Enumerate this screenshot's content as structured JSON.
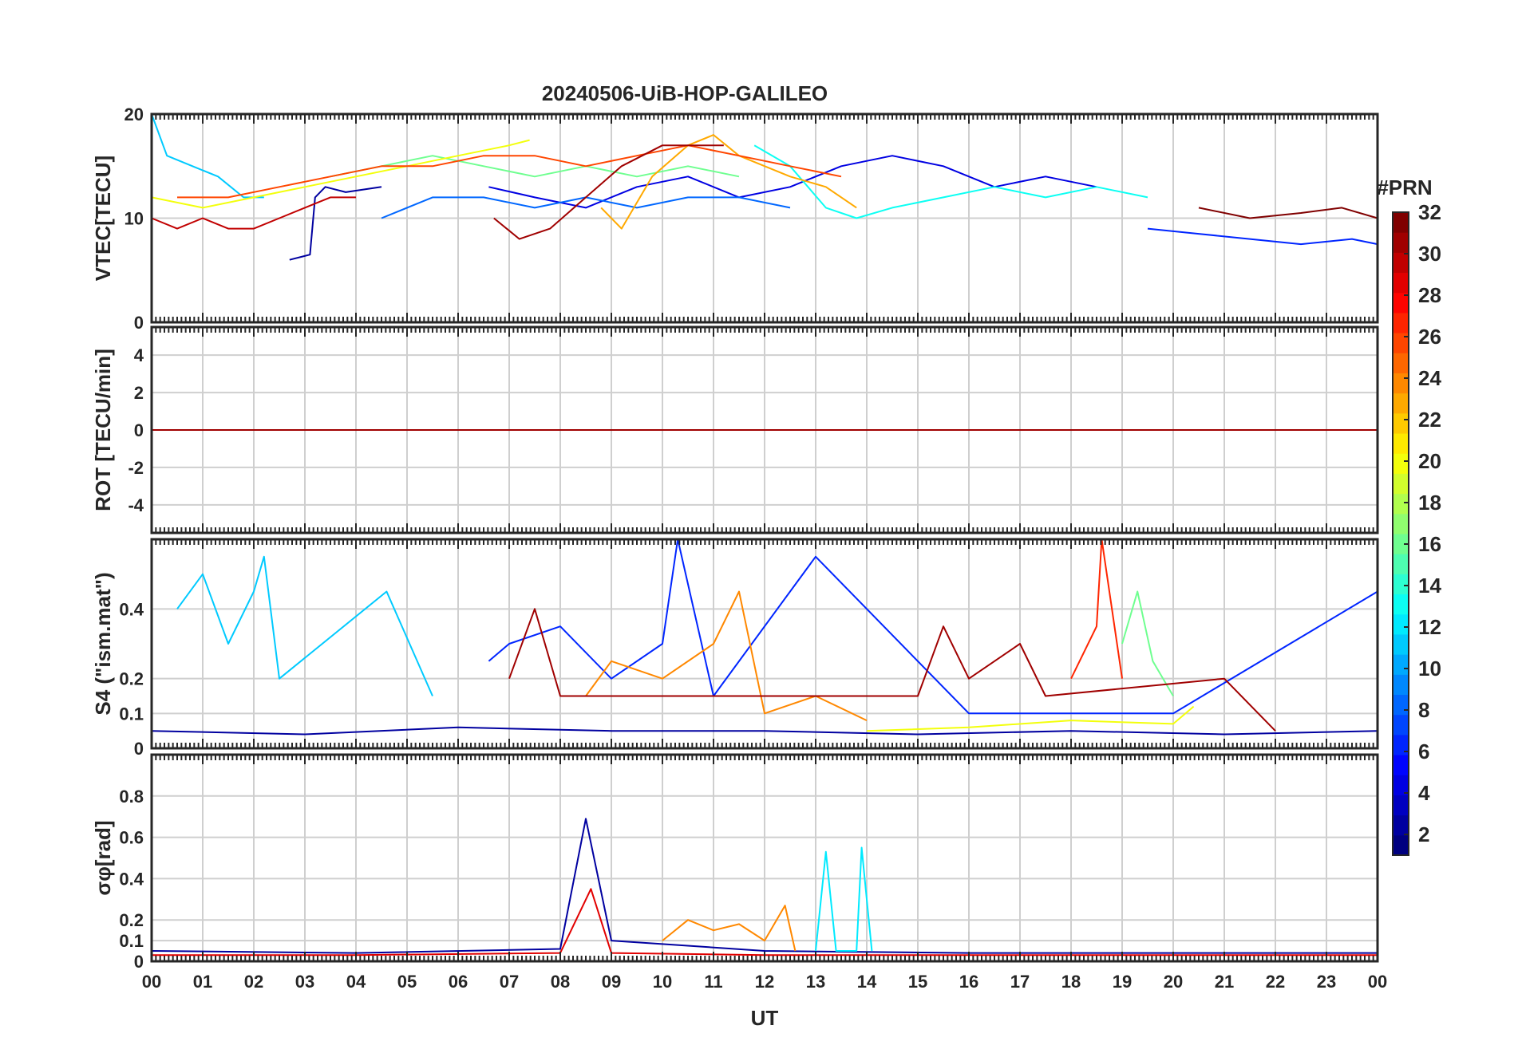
{
  "chart_data": {
    "type": "line",
    "title": "20240506-UiB-HOP-GALILEO",
    "xlabel": "UT",
    "x_ticks": [
      "00",
      "01",
      "02",
      "03",
      "04",
      "05",
      "06",
      "07",
      "08",
      "09",
      "10",
      "11",
      "12",
      "13",
      "14",
      "15",
      "16",
      "17",
      "18",
      "19",
      "20",
      "21",
      "22",
      "23",
      "00"
    ],
    "xlim_hours": [
      0,
      24
    ],
    "panels": [
      {
        "id": "vtec",
        "ylabel": "VTEC[TECU]",
        "ylim": [
          0,
          20
        ],
        "yticks": [
          0,
          10,
          20
        ],
        "grid": true,
        "series": [
          {
            "prn": 2,
            "x": [
              2.7,
              3.1,
              3.2,
              3.4,
              3.8,
              4.5
            ],
            "y": [
              6,
              6.5,
              12,
              13,
              12.5,
              13
            ]
          },
          {
            "prn": 4,
            "x": [
              6.6,
              7.5,
              8.5,
              9.5,
              10.5,
              11.5,
              12.5,
              13.5,
              14.5,
              15.5,
              16.5,
              17.5,
              18.5
            ],
            "y": [
              13,
              12,
              11,
              13,
              14,
              12,
              13,
              15,
              16,
              15,
              13,
              14,
              13
            ]
          },
          {
            "prn": 6,
            "x": [
              19.5,
              20.5,
              21.5,
              22.5,
              23.5,
              24
            ],
            "y": [
              9,
              8.5,
              8,
              7.5,
              8,
              7.5
            ]
          },
          {
            "prn": 8,
            "x": [
              4.5,
              5.5,
              6.5,
              7.5,
              8.5,
              9.5,
              10.5,
              11.5,
              12.5
            ],
            "y": [
              10,
              12,
              12,
              11,
              12,
              11,
              12,
              12,
              11
            ]
          },
          {
            "prn": 11,
            "x": [
              0,
              0.3,
              0.8,
              1.3,
              1.8,
              2.2
            ],
            "y": [
              20,
              16,
              15,
              14,
              12,
              12
            ]
          },
          {
            "prn": 13,
            "x": [
              11.8,
              12.5,
              13.2,
              13.8,
              14.5,
              15.5,
              16.5,
              17.5,
              18.5,
              19.5
            ],
            "y": [
              17,
              15,
              11,
              10,
              11,
              12,
              13,
              12,
              13,
              12
            ]
          },
          {
            "prn": 16,
            "x": [
              3.5,
              4.5,
              5.5,
              6.5,
              7.5,
              8.5,
              9.5,
              10.5,
              11.5
            ],
            "y": [
              14,
              15,
              16,
              15,
              14,
              15,
              14,
              15,
              14
            ]
          },
          {
            "prn": 20,
            "x": [
              0,
              1,
              2,
              3,
              4,
              5,
              6,
              7,
              7.4
            ],
            "y": [
              12,
              11,
              12,
              13,
              14,
              15,
              16,
              17,
              17.5
            ]
          },
          {
            "prn": 23,
            "x": [
              8.8,
              9.2,
              9.8,
              10.5,
              11,
              11.5,
              12.5,
              13.2,
              13.8
            ],
            "y": [
              11,
              9,
              14,
              17,
              18,
              16,
              14,
              13,
              11
            ]
          },
          {
            "prn": 26,
            "x": [
              0.5,
              1.5,
              2.5,
              3.5,
              4.5,
              5.5,
              6.5,
              7.5,
              8.5,
              9.5,
              10.5,
              11.5,
              12.5,
              13.5
            ],
            "y": [
              12,
              12,
              13,
              14,
              15,
              15,
              16,
              16,
              15,
              16,
              17,
              16,
              15,
              14
            ]
          },
          {
            "prn": 30,
            "x": [
              0,
              0.5,
              1,
              1.5,
              2,
              2.5,
              3,
              3.5,
              4
            ],
            "y": [
              10,
              9,
              10,
              9,
              9,
              10,
              11,
              12,
              12
            ]
          },
          {
            "prn": 31,
            "x": [
              6.7,
              7.2,
              7.8,
              8.5,
              9.2,
              10,
              10.8,
              11.2
            ],
            "y": [
              10,
              8,
              9,
              12,
              15,
              17,
              17,
              17
            ]
          },
          {
            "prn": 32,
            "x": [
              20.5,
              21.5,
              22.5,
              23.3,
              24
            ],
            "y": [
              11,
              10,
              10.5,
              11,
              10
            ]
          }
        ]
      },
      {
        "id": "rot",
        "ylabel": "ROT [TECU/min]",
        "ylim": [
          -5.5,
          5.5
        ],
        "yticks": [
          -4,
          -2,
          0,
          2,
          4
        ],
        "grid": true,
        "series": [
          {
            "prn": 4,
            "x": [
              0,
              3,
              6,
              9,
              12,
              15,
              18,
              21,
              24
            ],
            "y": [
              0,
              0,
              0,
              0,
              0,
              0,
              0,
              0,
              0
            ]
          },
          {
            "prn": 11,
            "x": [
              0,
              2,
              4,
              6,
              8,
              10,
              12,
              14,
              16,
              18,
              20,
              22,
              24
            ],
            "y": [
              0,
              0,
              0,
              0,
              0,
              0,
              0,
              0,
              0,
              0,
              0,
              0,
              0
            ]
          },
          {
            "prn": 24,
            "x": [
              0,
              4,
              8,
              12,
              16,
              20,
              24
            ],
            "y": [
              0,
              0,
              0,
              0,
              0,
              0,
              0
            ]
          },
          {
            "prn": 31,
            "x": [
              0,
              4,
              8,
              12,
              16,
              20,
              24
            ],
            "y": [
              0,
              0,
              0,
              0,
              0,
              0,
              0
            ]
          }
        ]
      },
      {
        "id": "s4",
        "ylabel": "S4 (\"ism.mat\")",
        "ylim": [
          0,
          0.6
        ],
        "yticks": [
          0,
          0.1,
          0.2,
          0.4
        ],
        "grid": true,
        "series": [
          {
            "prn": 2,
            "x": [
              0,
              3,
              6,
              9,
              12,
              15,
              18,
              21,
              24
            ],
            "y": [
              0.05,
              0.04,
              0.06,
              0.05,
              0.05,
              0.04,
              0.05,
              0.04,
              0.05
            ]
          },
          {
            "prn": 6,
            "x": [
              6.6,
              7,
              8,
              9,
              10,
              10.3,
              11,
              13,
              16,
              20,
              24
            ],
            "y": [
              0.25,
              0.3,
              0.35,
              0.2,
              0.3,
              0.6,
              0.15,
              0.55,
              0.1,
              0.1,
              0.45
            ]
          },
          {
            "prn": 11,
            "x": [
              0.5,
              1,
              1.5,
              2,
              2.2,
              2.5,
              4.6,
              5.5
            ],
            "y": [
              0.4,
              0.5,
              0.3,
              0.45,
              0.55,
              0.2,
              0.45,
              0.15
            ]
          },
          {
            "prn": 16,
            "x": [
              19,
              19.3,
              19.6,
              20
            ],
            "y": [
              0.3,
              0.45,
              0.25,
              0.15
            ]
          },
          {
            "prn": 20,
            "x": [
              14,
              16,
              18,
              20,
              20.4
            ],
            "y": [
              0.05,
              0.06,
              0.08,
              0.07,
              0.12
            ]
          },
          {
            "prn": 24,
            "x": [
              8.5,
              9,
              10,
              11,
              11.5,
              12,
              13,
              14
            ],
            "y": [
              0.15,
              0.25,
              0.2,
              0.3,
              0.45,
              0.1,
              0.15,
              0.08
            ]
          },
          {
            "prn": 27,
            "x": [
              18,
              18.5,
              18.6,
              19
            ],
            "y": [
              0.2,
              0.35,
              0.6,
              0.2
            ]
          },
          {
            "prn": 31,
            "x": [
              7,
              7.5,
              8,
              15,
              15.5,
              16,
              17,
              17.5,
              21,
              22
            ],
            "y": [
              0.2,
              0.4,
              0.15,
              0.15,
              0.35,
              0.2,
              0.3,
              0.15,
              0.2,
              0.05
            ]
          }
        ]
      },
      {
        "id": "sigma_phi",
        "ylabel": "σφ[rad]",
        "ylim": [
          0,
          1
        ],
        "yticks": [
          0,
          0.1,
          0.2,
          0.4,
          0.6,
          0.8
        ],
        "grid": true,
        "series": [
          {
            "prn": 2,
            "x": [
              0,
              4,
              8,
              8.5,
              9,
              12,
              16,
              20,
              24
            ],
            "y": [
              0.05,
              0.04,
              0.06,
              0.69,
              0.1,
              0.05,
              0.04,
              0.04,
              0.04
            ]
          },
          {
            "prn": 12,
            "x": [
              13,
              13.2,
              13.4,
              13.8,
              13.9,
              14.1
            ],
            "y": [
              0.05,
              0.53,
              0.05,
              0.05,
              0.55,
              0.05
            ]
          },
          {
            "prn": 24,
            "x": [
              10,
              10.5,
              11,
              11.5,
              12,
              12.4,
              12.6
            ],
            "y": [
              0.1,
              0.2,
              0.15,
              0.18,
              0.1,
              0.27,
              0.05
            ]
          },
          {
            "prn": 29,
            "x": [
              0,
              4,
              8,
              8.6,
              9,
              12,
              16,
              20,
              24
            ],
            "y": [
              0.03,
              0.03,
              0.04,
              0.35,
              0.04,
              0.03,
              0.03,
              0.03,
              0.03
            ]
          }
        ]
      }
    ],
    "colorbar": {
      "label": "#PRN",
      "colormap": "jet",
      "range": [
        1,
        32
      ],
      "ticks": [
        2,
        4,
        6,
        8,
        10,
        12,
        14,
        16,
        18,
        20,
        22,
        24,
        26,
        28,
        30,
        32
      ]
    }
  }
}
